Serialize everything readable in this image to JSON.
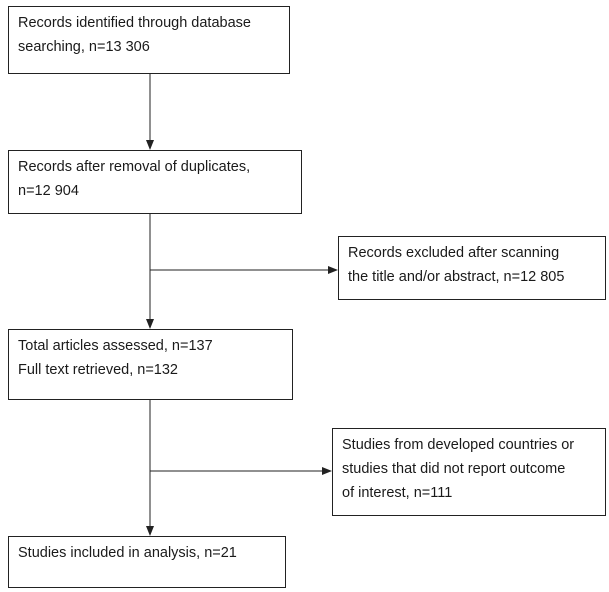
{
  "flow": {
    "identified": {
      "line1": "Records identified through database",
      "line2": "searching, n=13 306"
    },
    "duplicates": {
      "line1": "Records after removal of duplicates,",
      "line2": "n=12 904"
    },
    "excluded": {
      "line1": "Records excluded after scanning",
      "line2": "the title and/or abstract, n=12 805"
    },
    "assessed": {
      "line1": "Total articles assessed, n=137",
      "line2": "Full text retrieved, n=132"
    },
    "developed": {
      "line1": "Studies from developed countries or",
      "line2": "studies that did not report outcome",
      "line3": "of interest, n=111"
    },
    "included": {
      "line1": "Studies included in analysis, n=21"
    }
  }
}
